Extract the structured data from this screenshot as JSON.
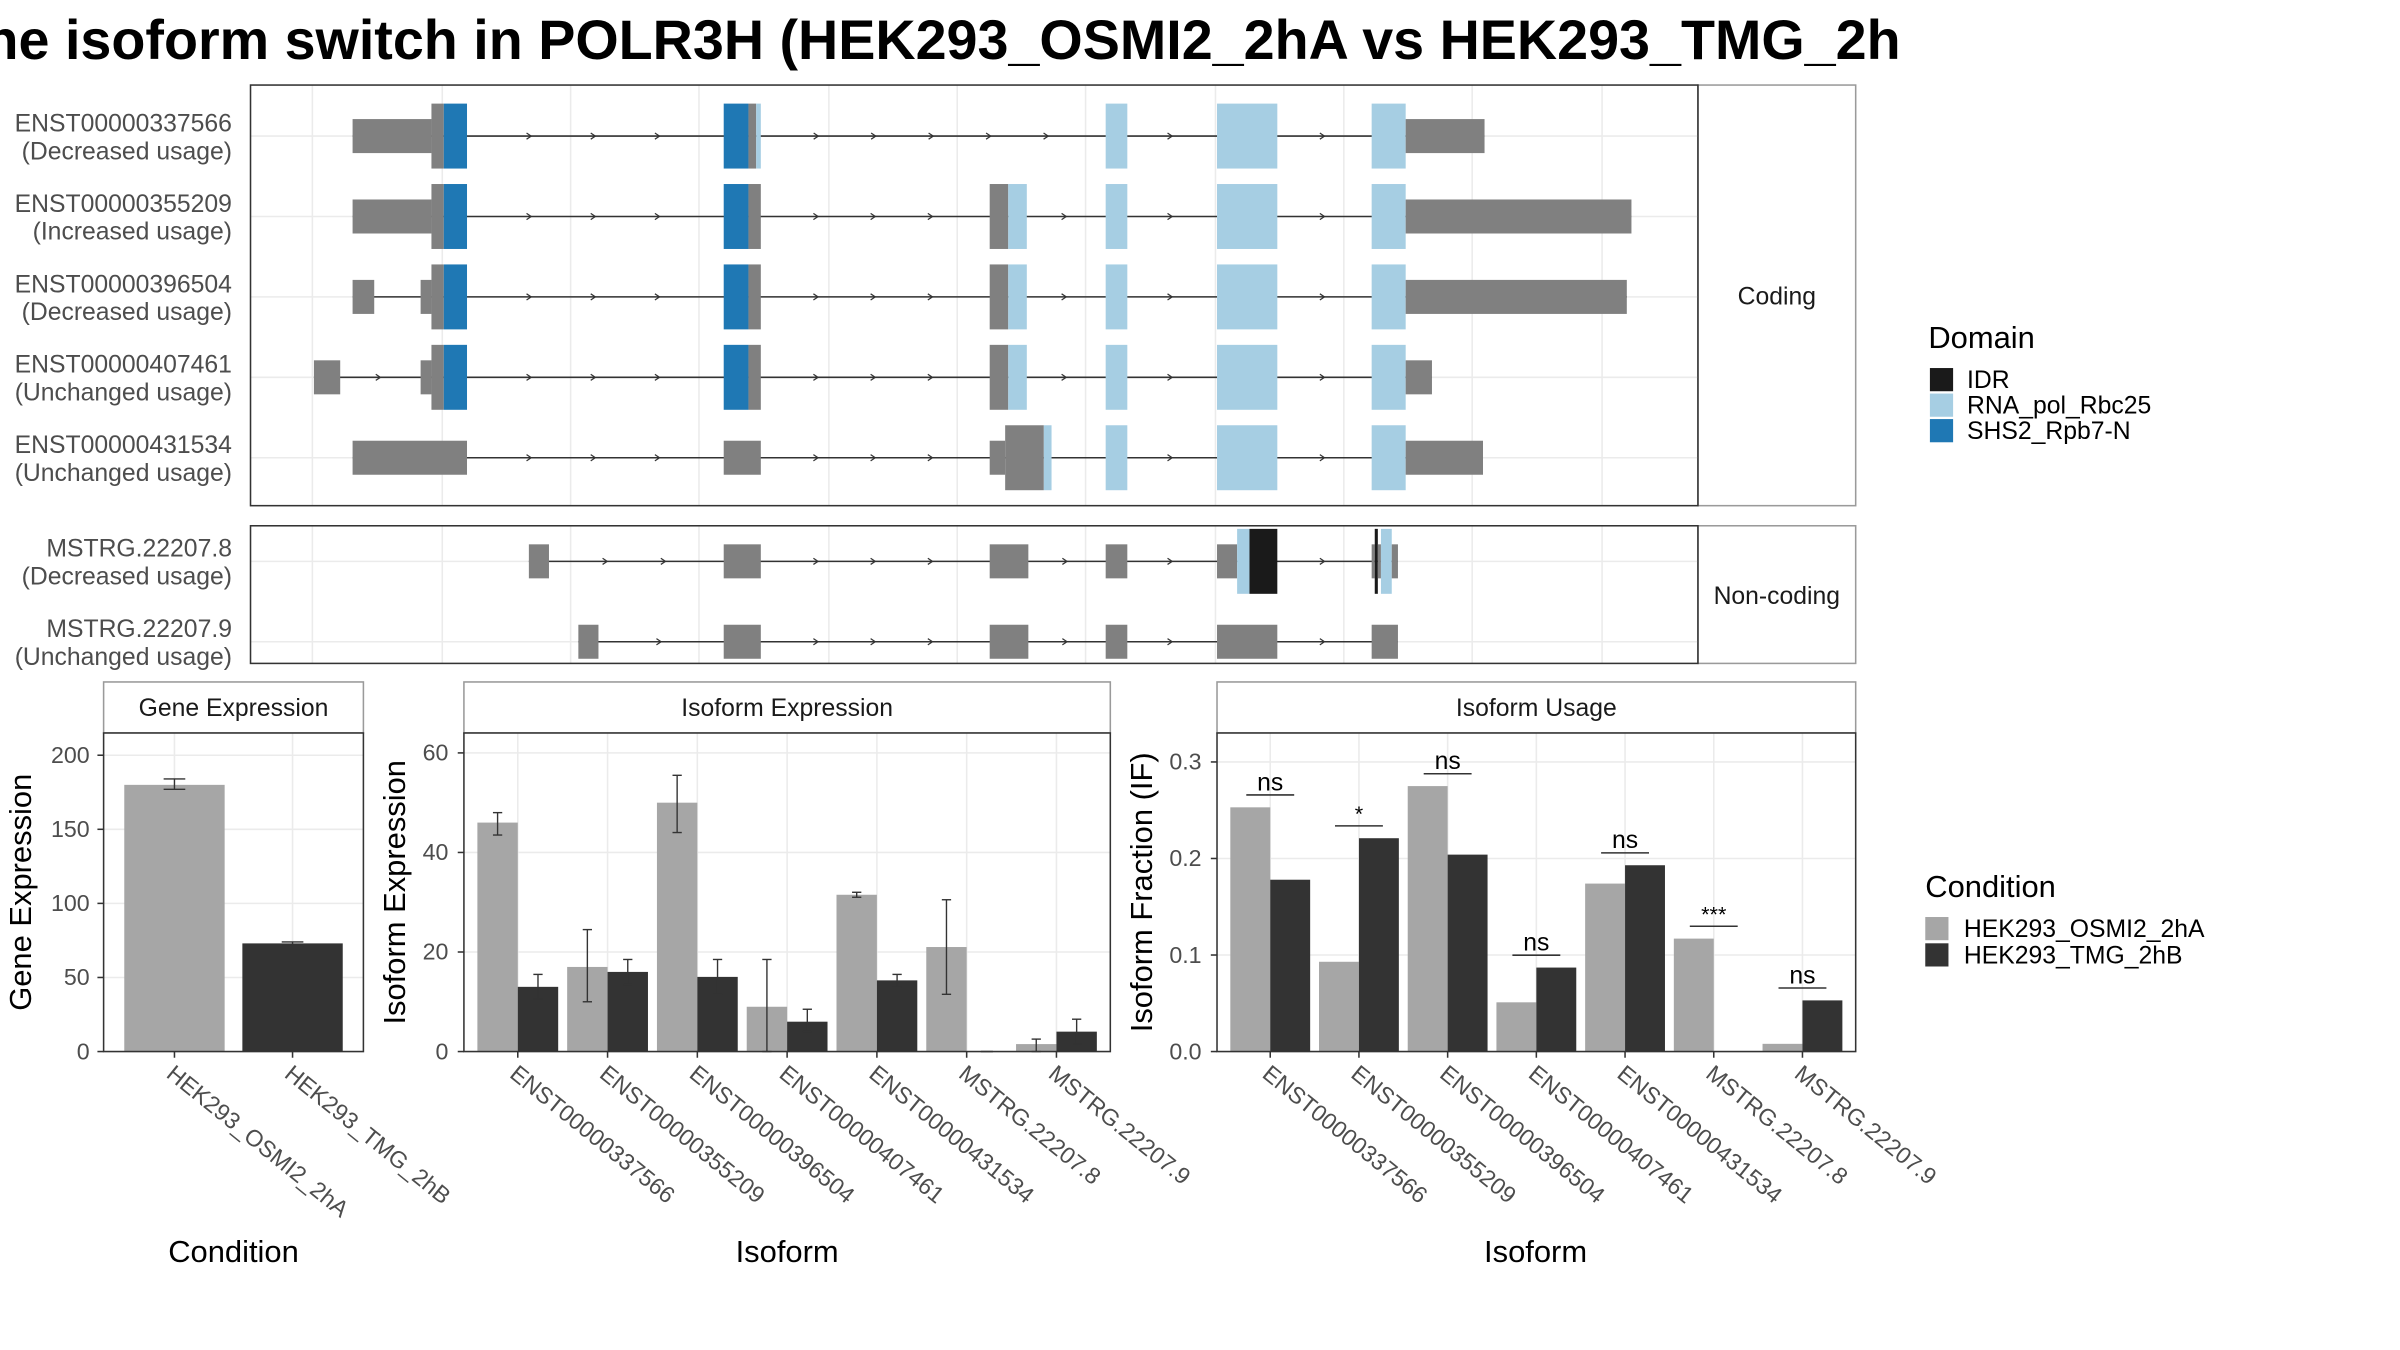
{
  "title": "ne isoform switch in POLR3H (HEK293_OSMI2_2hA vs HEK293_TMG_2h",
  "colors": {
    "utr": "#808080",
    "IDR": "#1a1a1a",
    "RNA_pol_Rbc25": "#a6cee3",
    "SHS2_Rpb7-N": "#1f78b4",
    "cond1": "#a6a6a6",
    "cond2": "#333333"
  },
  "legends": {
    "domain": {
      "title": "Domain",
      "items": [
        "IDR",
        "RNA_pol_Rbc25",
        "SHS2_Rpb7-N"
      ]
    },
    "condition": {
      "title": "Condition",
      "items": [
        "HEK293_OSMI2_2hA",
        "HEK293_TMG_2hB"
      ]
    }
  },
  "structure": {
    "coding_label": "Coding",
    "noncoding_label": "Non-coding",
    "coding": [
      {
        "id": "ENST00000337566",
        "usage": "(Decreased usage)"
      },
      {
        "id": "ENST00000355209",
        "usage": "(Increased usage)"
      },
      {
        "id": "ENST00000396504",
        "usage": "(Decreased usage)"
      },
      {
        "id": "ENST00000407461",
        "usage": "(Unchanged usage)"
      },
      {
        "id": "ENST00000431534",
        "usage": "(Unchanged usage)"
      }
    ],
    "noncoding": [
      {
        "id": "MSTRG.22207.8",
        "usage": "(Decreased usage)"
      },
      {
        "id": "MSTRG.22207.9",
        "usage": "(Unchanged usage)"
      }
    ]
  },
  "chart_data": [
    {
      "type": "bar",
      "title": "Gene Expression",
      "xlabel": "Condition",
      "ylabel": "Gene Expression",
      "categories": [
        "HEK293_OSMI2_2hA",
        "HEK293_TMG_2hB"
      ],
      "values": [
        180,
        73
      ],
      "errors": [
        [
          177,
          184
        ],
        [
          71,
          74
        ]
      ],
      "ylim": [
        0,
        215
      ],
      "yticks": [
        0,
        50,
        100,
        150,
        200
      ]
    },
    {
      "type": "bar",
      "title": "Isoform Expression",
      "xlabel": "Isoform",
      "ylabel": "Isoform Expression",
      "categories": [
        "ENST00000337566",
        "ENST00000355209",
        "ENST00000396504",
        "ENST00000407461",
        "ENST00000431534",
        "MSTRG.22207.8",
        "MSTRG.22207.9"
      ],
      "series": [
        {
          "name": "HEK293_OSMI2_2hA",
          "values": [
            46,
            17,
            50,
            9,
            31.5,
            21,
            1.5
          ],
          "errors": [
            [
              43.5,
              48
            ],
            [
              10,
              24.5
            ],
            [
              44,
              55.5
            ],
            [
              0,
              18.5
            ],
            [
              31,
              32
            ],
            [
              11.5,
              30.5
            ],
            [
              0,
              2.5
            ]
          ]
        },
        {
          "name": "HEK293_TMG_2hB",
          "values": [
            13,
            16,
            15,
            6,
            14.3,
            0,
            4
          ],
          "errors": [
            [
              10.5,
              15.5
            ],
            [
              13.5,
              18.5
            ],
            [
              11.5,
              18.5
            ],
            [
              4,
              8.5
            ],
            [
              13,
              15.5
            ],
            [
              0,
              0
            ],
            [
              1.5,
              6.5
            ]
          ]
        }
      ],
      "ylim": [
        0,
        64
      ],
      "yticks": [
        0,
        20,
        40,
        60
      ]
    },
    {
      "type": "bar",
      "title": "Isoform Usage",
      "xlabel": "Isoform",
      "ylabel": "Isoform Fraction (IF)",
      "categories": [
        "ENST00000337566",
        "ENST00000355209",
        "ENST00000396504",
        "ENST00000407461",
        "ENST00000431534",
        "MSTRG.22207.8",
        "MSTRG.22207.9"
      ],
      "series": [
        {
          "name": "HEK293_OSMI2_2hA",
          "values": [
            0.253,
            0.093,
            0.275,
            0.051,
            0.174,
            0.117,
            0.008
          ]
        },
        {
          "name": "HEK293_TMG_2hB",
          "values": [
            0.178,
            0.221,
            0.204,
            0.087,
            0.193,
            0,
            0.053
          ]
        }
      ],
      "significance": [
        "ns",
        "*",
        "ns",
        "ns",
        "ns",
        "***",
        "ns"
      ],
      "ylim": [
        0,
        0.33
      ],
      "yticks": [
        "0.0",
        "0.1",
        "0.2",
        "0.3"
      ]
    }
  ]
}
